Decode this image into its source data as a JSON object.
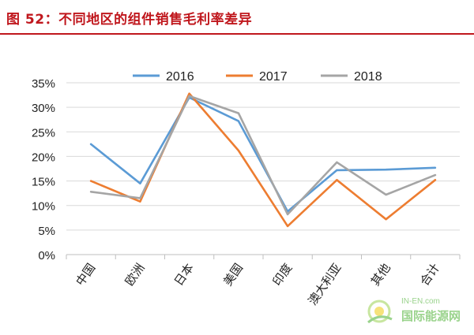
{
  "figure": {
    "title": "图 52：不同地区的组件销售毛利率差异"
  },
  "colors": {
    "title_red": "#c0171d",
    "series_2016": "#5b9bd5",
    "series_2017": "#ed7d31",
    "series_2018": "#a5a5a5",
    "gridline": "#d9d9d9",
    "watermark": "#9ad38c"
  },
  "watermark": {
    "top": "IN-EN.com",
    "text": "国际能源网",
    "icon": "sun-leaf-logo-icon"
  },
  "chart_data": {
    "type": "line",
    "title": "",
    "xlabel": "",
    "ylabel": "",
    "categories": [
      "中国",
      "欧洲",
      "日本",
      "美国",
      "印度",
      "澳大利亚",
      "其他",
      "合计"
    ],
    "y_ticks": [
      "0%",
      "5%",
      "10%",
      "15%",
      "20%",
      "25%",
      "30%",
      "35%"
    ],
    "ylim": [
      0,
      35
    ],
    "grid": "horizontal",
    "legend_position": "top",
    "series": [
      {
        "name": "2016",
        "color": "#5b9bd5",
        "values": [
          22.5,
          14.5,
          32.0,
          27.2,
          8.8,
          17.2,
          17.3,
          17.7
        ]
      },
      {
        "name": "2017",
        "color": "#ed7d31",
        "values": [
          15.0,
          10.8,
          32.8,
          21.2,
          5.8,
          15.2,
          7.2,
          15.2
        ]
      },
      {
        "name": "2018",
        "color": "#a5a5a5",
        "values": [
          12.8,
          11.5,
          32.3,
          28.8,
          8.2,
          18.8,
          12.2,
          16.2
        ]
      }
    ]
  }
}
